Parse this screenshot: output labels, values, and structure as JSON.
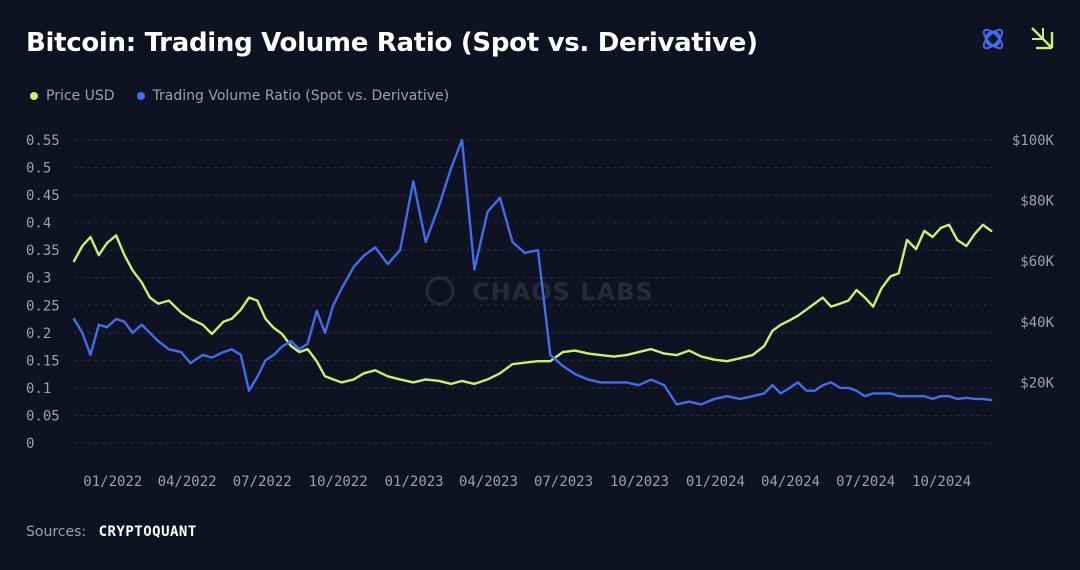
{
  "header": {
    "title": "Bitcoin: Trading Volume Ratio (Spot vs. Derivative)"
  },
  "legend": [
    {
      "name": "Price USD",
      "color": "#c6f36b"
    },
    {
      "name": "Trading Volume Ratio (Spot vs. Derivative)",
      "color": "#3e6df0"
    }
  ],
  "watermark": "CHAOS LABS",
  "icons": [
    "chaos-labs-logo-icon",
    "brand-arrow-logo-icon"
  ],
  "footer": {
    "label": "Sources:",
    "value": "CRYPTOQUANT"
  },
  "chart_data": {
    "type": "line",
    "title": "Bitcoin: Trading Volume Ratio (Spot vs. Derivative)",
    "grid": true,
    "legend_position": "top-left",
    "x_ticks": [
      "01/2022",
      "04/2022",
      "07/2022",
      "10/2022",
      "01/2023",
      "04/2023",
      "07/2023",
      "10/2023",
      "01/2024",
      "04/2024",
      "07/2024",
      "10/2024"
    ],
    "x_range": [
      "2021-11-15",
      "2024-12-01"
    ],
    "y_left": {
      "range": [
        0,
        0.55
      ],
      "ticks": [
        "0",
        "0.05",
        "0.1",
        "0.15",
        "0.2",
        "0.25",
        "0.3",
        "0.35",
        "0.4",
        "0.45",
        "0.5",
        "0.55"
      ]
    },
    "y_right": {
      "range": [
        0,
        100000
      ],
      "ticks": [
        "",
        "$20K",
        "$40K",
        "$60K",
        "$80K",
        "$100K"
      ]
    },
    "series": [
      {
        "name": "Price USD",
        "axis": "right",
        "color": "#c6f36b",
        "points": [
          [
            "2021-11-15",
            60000
          ],
          [
            "2021-11-25",
            65000
          ],
          [
            "2021-12-05",
            68000
          ],
          [
            "2021-12-15",
            62000
          ],
          [
            "2021-12-25",
            66000
          ],
          [
            "2022-01-05",
            68500
          ],
          [
            "2022-01-15",
            62000
          ],
          [
            "2022-01-25",
            57000
          ],
          [
            "2022-02-05",
            53000
          ],
          [
            "2022-02-15",
            48000
          ],
          [
            "2022-02-25",
            46000
          ],
          [
            "2022-03-10",
            47000
          ],
          [
            "2022-03-25",
            43000
          ],
          [
            "2022-04-05",
            41000
          ],
          [
            "2022-04-20",
            39000
          ],
          [
            "2022-05-01",
            36000
          ],
          [
            "2022-05-15",
            40000
          ],
          [
            "2022-05-25",
            41000
          ],
          [
            "2022-06-05",
            44000
          ],
          [
            "2022-06-15",
            48000
          ],
          [
            "2022-06-25",
            47000
          ],
          [
            "2022-07-05",
            41000
          ],
          [
            "2022-07-15",
            38000
          ],
          [
            "2022-07-25",
            36000
          ],
          [
            "2022-08-05",
            32000
          ],
          [
            "2022-08-15",
            30000
          ],
          [
            "2022-08-25",
            31000
          ],
          [
            "2022-09-05",
            27000
          ],
          [
            "2022-09-15",
            22000
          ],
          [
            "2022-09-25",
            21000
          ],
          [
            "2022-10-05",
            20000
          ],
          [
            "2022-10-20",
            21000
          ],
          [
            "2022-11-01",
            23000
          ],
          [
            "2022-11-15",
            24000
          ],
          [
            "2022-11-30",
            22000
          ],
          [
            "2022-12-15",
            21000
          ],
          [
            "2022-12-31",
            20000
          ],
          [
            "2023-01-15",
            21000
          ],
          [
            "2023-01-31",
            20500
          ],
          [
            "2023-02-15",
            19500
          ],
          [
            "2023-02-28",
            20500
          ],
          [
            "2023-03-15",
            19500
          ],
          [
            "2023-03-31",
            21000
          ],
          [
            "2023-04-15",
            23000
          ],
          [
            "2023-04-30",
            26000
          ],
          [
            "2023-05-15",
            26500
          ],
          [
            "2023-05-31",
            27000
          ],
          [
            "2023-06-15",
            27000
          ],
          [
            "2023-06-30",
            30000
          ],
          [
            "2023-07-15",
            30500
          ],
          [
            "2023-07-31",
            29500
          ],
          [
            "2023-08-15",
            29000
          ],
          [
            "2023-08-31",
            28500
          ],
          [
            "2023-09-15",
            29000
          ],
          [
            "2023-09-30",
            30000
          ],
          [
            "2023-10-15",
            31000
          ],
          [
            "2023-10-31",
            29500
          ],
          [
            "2023-11-15",
            29000
          ],
          [
            "2023-11-30",
            30500
          ],
          [
            "2023-12-15",
            28500
          ],
          [
            "2023-12-31",
            27500
          ],
          [
            "2024-01-15",
            27000
          ],
          [
            "2024-01-31",
            28000
          ],
          [
            "2024-02-15",
            29000
          ],
          [
            "2024-02-29",
            32000
          ],
          [
            "2024-03-10",
            37000
          ],
          [
            "2024-03-20",
            39000
          ],
          [
            "2024-03-31",
            40500
          ],
          [
            "2024-04-10",
            42000
          ],
          [
            "2024-04-20",
            44000
          ],
          [
            "2024-04-30",
            46000
          ],
          [
            "2024-05-10",
            48000
          ],
          [
            "2024-05-20",
            45000
          ],
          [
            "2024-05-31",
            46000
          ],
          [
            "2024-06-10",
            47000
          ],
          [
            "2024-06-20",
            50500
          ],
          [
            "2024-06-30",
            48000
          ],
          [
            "2024-07-10",
            45000
          ],
          [
            "2024-07-20",
            51000
          ],
          [
            "2024-07-31",
            55000
          ],
          [
            "2024-08-10",
            56000
          ],
          [
            "2024-08-20",
            67000
          ],
          [
            "2024-08-31",
            64000
          ],
          [
            "2024-09-10",
            70000
          ],
          [
            "2024-09-20",
            68000
          ],
          [
            "2024-09-30",
            71000
          ],
          [
            "2024-10-10",
            72000
          ],
          [
            "2024-10-20",
            67000
          ],
          [
            "2024-10-31",
            65000
          ],
          [
            "2024-11-10",
            69000
          ],
          [
            "2024-11-20",
            72000
          ],
          [
            "2024-11-30",
            70000
          ]
        ]
      },
      {
        "name": "Trading Volume Ratio (Spot vs. Derivative)",
        "axis": "left",
        "color": "#3e6df0",
        "points": [
          [
            "2021-11-15",
            0.225
          ],
          [
            "2021-11-25",
            0.2
          ],
          [
            "2021-12-05",
            0.16
          ],
          [
            "2021-12-15",
            0.215
          ],
          [
            "2021-12-25",
            0.21
          ],
          [
            "2022-01-05",
            0.225
          ],
          [
            "2022-01-15",
            0.22
          ],
          [
            "2022-01-25",
            0.2
          ],
          [
            "2022-02-05",
            0.215
          ],
          [
            "2022-02-15",
            0.2
          ],
          [
            "2022-02-25",
            0.185
          ],
          [
            "2022-03-10",
            0.17
          ],
          [
            "2022-03-25",
            0.165
          ],
          [
            "2022-04-05",
            0.145
          ],
          [
            "2022-04-20",
            0.16
          ],
          [
            "2022-05-01",
            0.155
          ],
          [
            "2022-05-15",
            0.165
          ],
          [
            "2022-05-25",
            0.17
          ],
          [
            "2022-06-05",
            0.16
          ],
          [
            "2022-06-15",
            0.095
          ],
          [
            "2022-06-25",
            0.12
          ],
          [
            "2022-07-05",
            0.15
          ],
          [
            "2022-07-15",
            0.16
          ],
          [
            "2022-07-25",
            0.175
          ],
          [
            "2022-08-05",
            0.185
          ],
          [
            "2022-08-15",
            0.17
          ],
          [
            "2022-08-25",
            0.18
          ],
          [
            "2022-09-05",
            0.24
          ],
          [
            "2022-09-15",
            0.2
          ],
          [
            "2022-09-25",
            0.25
          ],
          [
            "2022-10-05",
            0.28
          ],
          [
            "2022-10-20",
            0.32
          ],
          [
            "2022-11-01",
            0.34
          ],
          [
            "2022-11-15",
            0.355
          ],
          [
            "2022-11-30",
            0.325
          ],
          [
            "2022-12-15",
            0.35
          ],
          [
            "2022-12-31",
            0.475
          ],
          [
            "2023-01-15",
            0.365
          ],
          [
            "2023-01-31",
            0.43
          ],
          [
            "2023-02-15",
            0.5
          ],
          [
            "2023-02-28",
            0.55
          ],
          [
            "2023-03-15",
            0.315
          ],
          [
            "2023-03-31",
            0.42
          ],
          [
            "2023-04-15",
            0.445
          ],
          [
            "2023-04-30",
            0.365
          ],
          [
            "2023-05-15",
            0.345
          ],
          [
            "2023-05-31",
            0.35
          ],
          [
            "2023-06-15",
            0.16
          ],
          [
            "2023-06-30",
            0.14
          ],
          [
            "2023-07-15",
            0.125
          ],
          [
            "2023-07-31",
            0.115
          ],
          [
            "2023-08-15",
            0.11
          ],
          [
            "2023-08-31",
            0.11
          ],
          [
            "2023-09-15",
            0.11
          ],
          [
            "2023-09-30",
            0.105
          ],
          [
            "2023-10-15",
            0.115
          ],
          [
            "2023-10-31",
            0.105
          ],
          [
            "2023-11-15",
            0.07
          ],
          [
            "2023-11-30",
            0.075
          ],
          [
            "2023-12-15",
            0.07
          ],
          [
            "2023-12-31",
            0.08
          ],
          [
            "2024-01-15",
            0.085
          ],
          [
            "2024-01-31",
            0.08
          ],
          [
            "2024-02-15",
            0.085
          ],
          [
            "2024-02-29",
            0.09
          ],
          [
            "2024-03-10",
            0.105
          ],
          [
            "2024-03-20",
            0.09
          ],
          [
            "2024-03-31",
            0.1
          ],
          [
            "2024-04-10",
            0.11
          ],
          [
            "2024-04-20",
            0.095
          ],
          [
            "2024-04-30",
            0.095
          ],
          [
            "2024-05-10",
            0.105
          ],
          [
            "2024-05-20",
            0.11
          ],
          [
            "2024-05-31",
            0.1
          ],
          [
            "2024-06-10",
            0.1
          ],
          [
            "2024-06-20",
            0.095
          ],
          [
            "2024-06-30",
            0.085
          ],
          [
            "2024-07-10",
            0.09
          ],
          [
            "2024-07-20",
            0.09
          ],
          [
            "2024-07-31",
            0.09
          ],
          [
            "2024-08-10",
            0.085
          ],
          [
            "2024-08-20",
            0.085
          ],
          [
            "2024-08-31",
            0.085
          ],
          [
            "2024-09-10",
            0.085
          ],
          [
            "2024-09-20",
            0.08
          ],
          [
            "2024-09-30",
            0.085
          ],
          [
            "2024-10-10",
            0.085
          ],
          [
            "2024-10-20",
            0.08
          ],
          [
            "2024-10-31",
            0.082
          ],
          [
            "2024-11-10",
            0.08
          ],
          [
            "2024-11-20",
            0.08
          ],
          [
            "2024-11-30",
            0.078
          ]
        ]
      }
    ]
  }
}
